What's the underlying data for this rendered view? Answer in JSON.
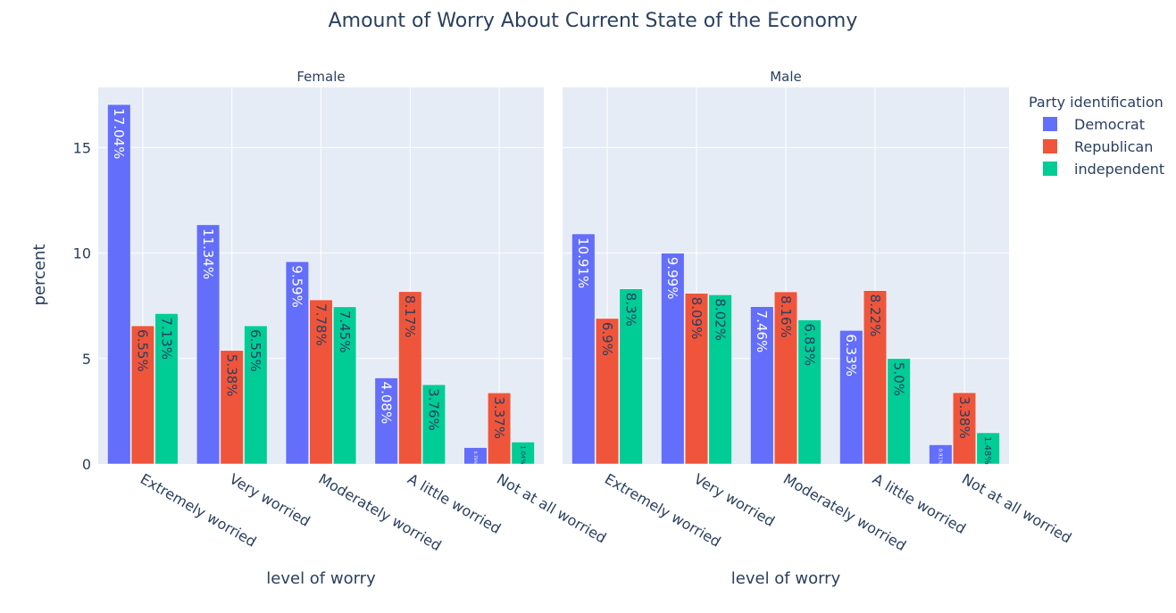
{
  "chart_data": {
    "type": "bar",
    "title": "Amount of Worry About Current State of the Economy",
    "ylabel": "percent",
    "xlabel": "level of worry",
    "ylim": [
      0,
      17.0
    ],
    "yticks": [
      0,
      5,
      10,
      15
    ],
    "grid": true,
    "legend": {
      "title": "Party identification",
      "placement": "top-right"
    },
    "categories": [
      "Extremely worried",
      "Very worried",
      "Moderately worried",
      "A little worried",
      "Not at all worried"
    ],
    "facets": [
      {
        "name": "Female",
        "series": [
          {
            "name": "Democrat",
            "color": "#636efa",
            "values": [
              17.04,
              11.34,
              9.59,
              4.08,
              0.78
            ],
            "labels": [
              "17.04%",
              "11.34%",
              "9.59%",
              "4.08%",
              "0.78%"
            ]
          },
          {
            "name": "Republican",
            "color": "#ef553b",
            "values": [
              6.55,
              5.38,
              7.78,
              8.17,
              3.37
            ],
            "labels": [
              "6.55%",
              "5.38%",
              "7.78%",
              "8.17%",
              "3.37%"
            ]
          },
          {
            "name": "independent",
            "color": "#00cc96",
            "values": [
              7.13,
              6.55,
              7.45,
              3.76,
              1.04
            ],
            "labels": [
              "7.13%",
              "6.55%",
              "7.45%",
              "3.76%",
              "1.04%"
            ]
          }
        ]
      },
      {
        "name": "Male",
        "series": [
          {
            "name": "Democrat",
            "color": "#636efa",
            "values": [
              10.91,
              9.99,
              7.46,
              6.33,
              0.91
            ],
            "labels": [
              "10.91%",
              "9.99%",
              "7.46%",
              "6.33%",
              "0.91%"
            ]
          },
          {
            "name": "Republican",
            "color": "#ef553b",
            "values": [
              6.9,
              8.09,
              8.16,
              8.22,
              3.38
            ],
            "labels": [
              "6.9%",
              "8.09%",
              "8.16%",
              "8.22%",
              "3.38%"
            ]
          },
          {
            "name": "independent",
            "color": "#00cc96",
            "values": [
              8.3,
              8.02,
              6.83,
              5.0,
              1.48
            ],
            "labels": [
              "8.3%",
              "8.02%",
              "6.83%",
              "5.0%",
              "1.48%"
            ]
          }
        ]
      }
    ],
    "colors": {
      "plot_background": "#e5ecf6",
      "gridline": "#ffffff",
      "text": "#2a3f5f"
    }
  }
}
